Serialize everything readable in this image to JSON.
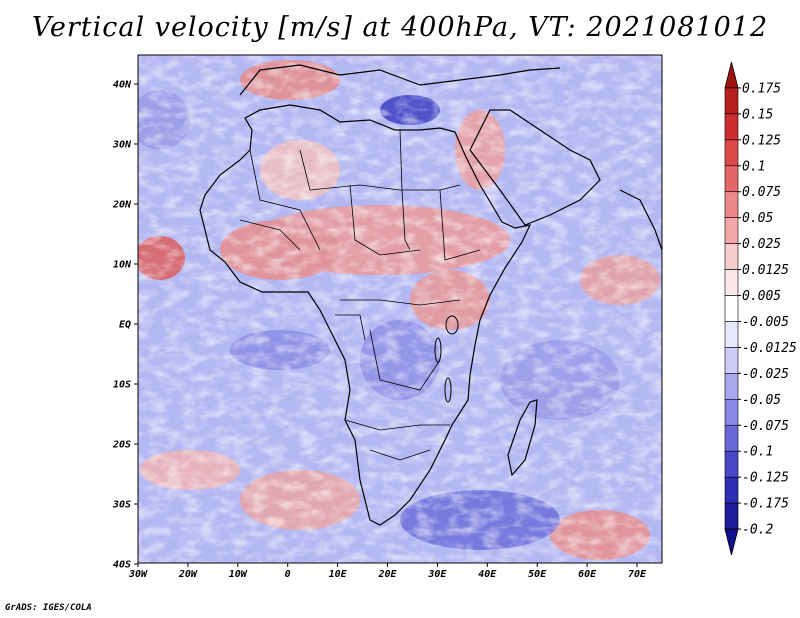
{
  "title": "Vertical velocity [m/s] at 400hPa, VT: 2021081012",
  "credit": "GrADS: IGES/COLA",
  "map": {
    "lon_labels": [
      "30W",
      "20W",
      "10W",
      "0",
      "10E",
      "20E",
      "30E",
      "40E",
      "50E",
      "60E",
      "70E"
    ],
    "lat_labels": [
      "40N",
      "30N",
      "20N",
      "10N",
      "EQ",
      "10S",
      "20S",
      "30S",
      "40S"
    ]
  },
  "colorbar": {
    "labels": [
      "0.175",
      "0.15",
      "0.125",
      "0.1",
      "0.075",
      "0.05",
      "0.025",
      "0.0125",
      "0.005",
      "-0.005",
      "-0.0125",
      "-0.025",
      "-0.05",
      "-0.075",
      "-0.1",
      "-0.125",
      "-0.175",
      "-0.2"
    ],
    "colors": [
      "#a01414",
      "#b81e1e",
      "#cc2e2e",
      "#dd4848",
      "#e56868",
      "#ec8888",
      "#f2a8a8",
      "#f8cccc",
      "#fce8e8",
      "#ffffff",
      "#e8e8fc",
      "#ccccf6",
      "#a8a8ee",
      "#8888e4",
      "#6868d8",
      "#4848c8",
      "#2e2eb4",
      "#1c1c9c",
      "#10108a"
    ]
  }
}
